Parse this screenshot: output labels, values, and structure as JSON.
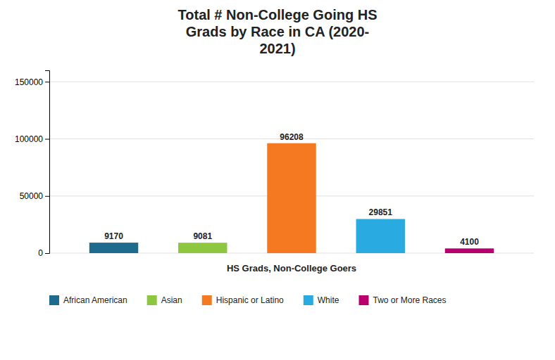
{
  "chart_data": {
    "type": "bar",
    "title": "Total # Non-College Going HS\nGrads by Race in CA (2020-\n2021)",
    "xlabel": "HS Grads, Non-College Goers",
    "categories": [
      "African American",
      "Asian",
      "Hispanic or Latino",
      "White",
      "Two or More Races"
    ],
    "values": [
      9170,
      9081,
      96208,
      29851,
      4100
    ],
    "colors": [
      "#1f6b8e",
      "#8dc63f",
      "#f47920",
      "#29abe2",
      "#b5006e"
    ],
    "ylim": [
      0,
      160000
    ],
    "yticks": [
      0,
      50000,
      100000,
      150000
    ],
    "grid": true,
    "data_labels": true,
    "tick_labels": "y",
    "legend": "bottom"
  }
}
